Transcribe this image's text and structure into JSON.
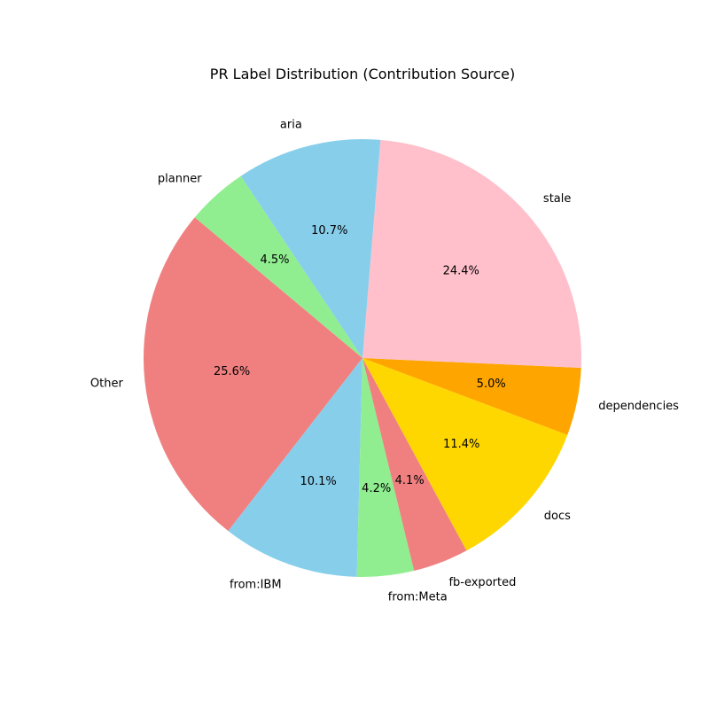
{
  "chart_data": {
    "type": "pie",
    "title": "PR Label Distribution (Contribution Source)",
    "start_angle_deg": 140,
    "direction": "counterclockwise",
    "slices": [
      {
        "label": "Other",
        "value": 25.6,
        "pct_label": "25.6%",
        "color": "#F08080"
      },
      {
        "label": "from:IBM",
        "value": 10.1,
        "pct_label": "10.1%",
        "color": "#87CEEB"
      },
      {
        "label": "from:Meta",
        "value": 4.2,
        "pct_label": "4.2%",
        "color": "#90EE90"
      },
      {
        "label": "fb-exported",
        "value": 4.1,
        "pct_label": "4.1%",
        "color": "#F08080"
      },
      {
        "label": "docs",
        "value": 11.4,
        "pct_label": "11.4%",
        "color": "#FFD700"
      },
      {
        "label": "dependencies",
        "value": 5.0,
        "pct_label": "5.0%",
        "color": "#FFA500"
      },
      {
        "label": "stale",
        "value": 24.4,
        "pct_label": "24.4%",
        "color": "#FFC0CB"
      },
      {
        "label": "aria",
        "value": 10.7,
        "pct_label": "10.7%",
        "color": "#87CEEB"
      },
      {
        "label": "planner",
        "value": 4.5,
        "pct_label": "4.5%",
        "color": "#90EE90"
      }
    ]
  }
}
